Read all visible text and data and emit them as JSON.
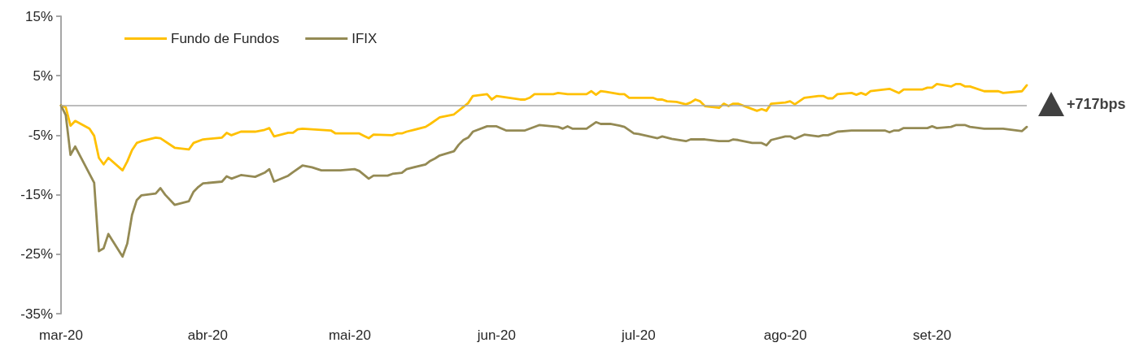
{
  "chart_data": {
    "type": "line",
    "series": [
      {
        "name": "Fundo de Fundos",
        "color": "#ffc000",
        "x": [
          "2020-03-01",
          "2020-03-02",
          "2020-03-03",
          "2020-03-04",
          "2020-03-07",
          "2020-03-08",
          "2020-03-09",
          "2020-03-10",
          "2020-03-11",
          "2020-03-14",
          "2020-03-15",
          "2020-03-16",
          "2020-03-17",
          "2020-03-18",
          "2020-03-21",
          "2020-03-22",
          "2020-03-25",
          "2020-03-28",
          "2020-03-29",
          "2020-03-31",
          "2020-04-04",
          "2020-04-05",
          "2020-04-06",
          "2020-04-08",
          "2020-04-11",
          "2020-04-13",
          "2020-04-14",
          "2020-04-15",
          "2020-04-18",
          "2020-04-19",
          "2020-04-20",
          "2020-04-21",
          "2020-04-25",
          "2020-04-27",
          "2020-04-28",
          "2020-05-03",
          "2020-05-04",
          "2020-05-05",
          "2020-05-06",
          "2020-05-10",
          "2020-05-11",
          "2020-05-12",
          "2020-05-13",
          "2020-05-17",
          "2020-05-18",
          "2020-05-20",
          "2020-05-23",
          "2020-05-26",
          "2020-05-27",
          "2020-05-30",
          "2020-05-31",
          "2020-06-01",
          "2020-06-06",
          "2020-06-07",
          "2020-06-08",
          "2020-06-09",
          "2020-06-13",
          "2020-06-14",
          "2020-06-16",
          "2020-06-20",
          "2020-06-21",
          "2020-06-22",
          "2020-06-23",
          "2020-06-24",
          "2020-06-27",
          "2020-06-28",
          "2020-06-29",
          "2020-07-04",
          "2020-07-05",
          "2020-07-06",
          "2020-07-07",
          "2020-07-09",
          "2020-07-11",
          "2020-07-12",
          "2020-07-13",
          "2020-07-14",
          "2020-07-15",
          "2020-07-18",
          "2020-07-19",
          "2020-07-20",
          "2020-07-21",
          "2020-07-22",
          "2020-07-26",
          "2020-07-27",
          "2020-07-28",
          "2020-07-29",
          "2020-08-01",
          "2020-08-02",
          "2020-08-03",
          "2020-08-05",
          "2020-08-08",
          "2020-08-09",
          "2020-08-10",
          "2020-08-11",
          "2020-08-12",
          "2020-08-15",
          "2020-08-16",
          "2020-08-17",
          "2020-08-18",
          "2020-08-19",
          "2020-08-23",
          "2020-08-25",
          "2020-08-26",
          "2020-08-30",
          "2020-08-31",
          "2020-09-01",
          "2020-09-02",
          "2020-09-05",
          "2020-09-06",
          "2020-09-07",
          "2020-09-08",
          "2020-09-09",
          "2020-09-12",
          "2020-09-15",
          "2020-09-16",
          "2020-09-20",
          "2020-09-21"
        ],
        "values": [
          0,
          -0.3,
          -3.4,
          -2.6,
          -3.9,
          -5.1,
          -8.8,
          -9.9,
          -8.8,
          -10.9,
          -9.4,
          -7.5,
          -6.3,
          -6.0,
          -5.4,
          -5.5,
          -7.1,
          -7.4,
          -6.3,
          -5.7,
          -5.4,
          -4.6,
          -5.0,
          -4.4,
          -4.4,
          -4.1,
          -3.8,
          -5.2,
          -4.6,
          -4.6,
          -4.0,
          -3.9,
          -4.1,
          -4.2,
          -4.7,
          -4.7,
          -5.1,
          -5.5,
          -4.9,
          -5.0,
          -4.7,
          -4.7,
          -4.4,
          -3.6,
          -3.1,
          -2.0,
          -1.5,
          0.4,
          1.6,
          1.9,
          1.0,
          1.6,
          1.0,
          1.0,
          1.3,
          1.9,
          1.9,
          2.1,
          1.9,
          1.9,
          2.4,
          1.8,
          2.4,
          2.3,
          1.9,
          1.9,
          1.3,
          1.3,
          1.0,
          1.0,
          0.7,
          0.6,
          0.2,
          0.5,
          1.0,
          0.7,
          -0.1,
          -0.4,
          0.3,
          -0.1,
          0.3,
          0.3,
          -0.9,
          -0.6,
          -0.9,
          0.3,
          0.5,
          0.7,
          0.2,
          1.3,
          1.6,
          1.6,
          1.2,
          1.2,
          1.9,
          2.1,
          1.8,
          2.1,
          1.8,
          2.4,
          2.8,
          2.1,
          2.7,
          2.7,
          3.0,
          3.0,
          3.6,
          3.2,
          3.6,
          3.6,
          3.2,
          3.2,
          2.4,
          2.4,
          2.1,
          2.4,
          3.4
        ]
      },
      {
        "name": "IFIX",
        "color": "#948a54",
        "x": [
          "2020-03-01",
          "2020-03-02",
          "2020-03-03",
          "2020-03-04",
          "2020-03-08",
          "2020-03-09",
          "2020-03-10",
          "2020-03-11",
          "2020-03-14",
          "2020-03-15",
          "2020-03-16",
          "2020-03-17",
          "2020-03-18",
          "2020-03-21",
          "2020-03-22",
          "2020-03-23",
          "2020-03-25",
          "2020-03-28",
          "2020-03-29",
          "2020-03-30",
          "2020-03-31",
          "2020-04-04",
          "2020-04-05",
          "2020-04-06",
          "2020-04-08",
          "2020-04-11",
          "2020-04-13",
          "2020-04-14",
          "2020-04-15",
          "2020-04-18",
          "2020-04-19",
          "2020-04-21",
          "2020-04-23",
          "2020-04-25",
          "2020-04-29",
          "2020-05-02",
          "2020-05-03",
          "2020-05-05",
          "2020-05-06",
          "2020-05-09",
          "2020-05-10",
          "2020-05-12",
          "2020-05-13",
          "2020-05-17",
          "2020-05-18",
          "2020-05-19",
          "2020-05-20",
          "2020-05-23",
          "2020-05-24",
          "2020-05-25",
          "2020-05-26",
          "2020-05-27",
          "2020-05-30",
          "2020-06-01",
          "2020-06-03",
          "2020-06-07",
          "2020-06-10",
          "2020-06-14",
          "2020-06-15",
          "2020-06-16",
          "2020-06-17",
          "2020-06-20",
          "2020-06-22",
          "2020-06-23",
          "2020-06-25",
          "2020-06-27",
          "2020-06-28",
          "2020-06-30",
          "2020-07-01",
          "2020-07-05",
          "2020-07-06",
          "2020-07-08",
          "2020-07-11",
          "2020-07-12",
          "2020-07-15",
          "2020-07-18",
          "2020-07-20",
          "2020-07-21",
          "2020-07-22",
          "2020-07-25",
          "2020-07-27",
          "2020-07-28",
          "2020-07-29",
          "2020-08-01",
          "2020-08-02",
          "2020-08-03",
          "2020-08-05",
          "2020-08-08",
          "2020-08-09",
          "2020-08-10",
          "2020-08-12",
          "2020-08-15",
          "2020-08-22",
          "2020-08-23",
          "2020-08-24",
          "2020-08-25",
          "2020-08-26",
          "2020-08-31",
          "2020-09-01",
          "2020-09-02",
          "2020-09-05",
          "2020-09-06",
          "2020-09-08",
          "2020-09-09",
          "2020-09-12",
          "2020-09-16",
          "2020-09-20",
          "2020-09-21"
        ],
        "values": [
          0,
          -1.6,
          -8.3,
          -6.9,
          -13.0,
          -24.5,
          -24.0,
          -21.6,
          -25.4,
          -23.2,
          -18.4,
          -15.9,
          -15.1,
          -14.8,
          -13.9,
          -15.0,
          -16.7,
          -16.1,
          -14.5,
          -13.7,
          -13.1,
          -12.8,
          -11.9,
          -12.3,
          -11.7,
          -12.0,
          -11.3,
          -10.7,
          -12.8,
          -11.8,
          -11.2,
          -10.1,
          -10.4,
          -10.9,
          -10.9,
          -10.7,
          -11.0,
          -12.3,
          -11.8,
          -11.8,
          -11.5,
          -11.3,
          -10.7,
          -9.9,
          -9.3,
          -8.9,
          -8.4,
          -7.7,
          -6.6,
          -5.8,
          -5.4,
          -4.4,
          -3.5,
          -3.5,
          -4.2,
          -4.2,
          -3.3,
          -3.6,
          -3.9,
          -3.5,
          -3.9,
          -3.9,
          -2.8,
          -3.1,
          -3.1,
          -3.4,
          -3.6,
          -4.7,
          -4.8,
          -5.5,
          -5.2,
          -5.6,
          -6.0,
          -5.7,
          -5.7,
          -6.0,
          -6.0,
          -5.7,
          -5.8,
          -6.3,
          -6.3,
          -6.7,
          -5.8,
          -5.2,
          -5.2,
          -5.6,
          -4.9,
          -5.2,
          -5.0,
          -5.0,
          -4.4,
          -4.2,
          -4.2,
          -4.5,
          -4.2,
          -4.2,
          -3.8,
          -3.8,
          -3.5,
          -3.8,
          -3.6,
          -3.3,
          -3.3,
          -3.6,
          -3.9,
          -3.9,
          -4.3,
          -3.6
        ]
      }
    ],
    "xlim": [
      "2020-03-01",
      "2020-09-21"
    ],
    "xticks": [
      {
        "value": "2020-03-01",
        "label": "mar-20"
      },
      {
        "value": "2020-04-01",
        "label": "abr-20"
      },
      {
        "value": "2020-05-01",
        "label": "mai-20"
      },
      {
        "value": "2020-06-01",
        "label": "jun-20"
      },
      {
        "value": "2020-07-01",
        "label": "jul-20"
      },
      {
        "value": "2020-08-01",
        "label": "ago-20"
      },
      {
        "value": "2020-09-01",
        "label": "set-20"
      }
    ],
    "ylim": [
      -35,
      15
    ],
    "yticks": [
      {
        "value": -35,
        "label": "-35%"
      },
      {
        "value": -25,
        "label": "-25%"
      },
      {
        "value": -15,
        "label": "-15%"
      },
      {
        "value": -5,
        "label": "-5%"
      },
      {
        "value": 5,
        "label": "5%"
      },
      {
        "value": 15,
        "label": "15%"
      }
    ],
    "ref_lines": [
      {
        "axis": "y",
        "value": 0,
        "color": "#a6a6a6"
      }
    ],
    "annotations": [
      "+717bps"
    ],
    "legend": "top left",
    "marker": "none"
  }
}
